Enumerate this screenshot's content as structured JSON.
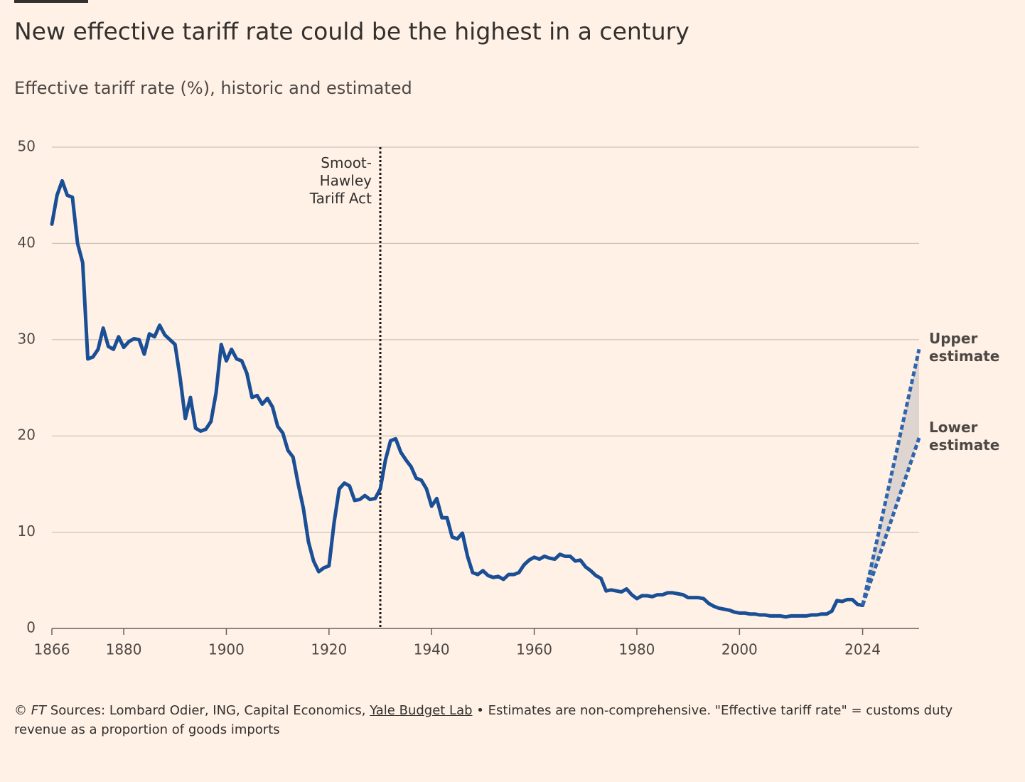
{
  "chart_data": {
    "type": "line",
    "title": "New effective tariff rate could be the highest in a century",
    "subtitle": "Effective tariff rate (%), historic and estimated",
    "xlim": [
      1866,
      2035
    ],
    "xticks": [
      1866,
      1880,
      1900,
      1920,
      1940,
      1960,
      1980,
      2000,
      2024
    ],
    "ylim": [
      0,
      50
    ],
    "yticks": [
      0,
      10,
      20,
      30,
      40,
      50
    ],
    "grid": true,
    "annotations": [
      {
        "text": "Smoot-Hawley Tariff Act",
        "x": 1930
      }
    ],
    "series": [
      {
        "color": "#1a4f96",
        "dashed": false,
        "x": [
          1866,
          1867,
          1868,
          1869,
          1870,
          1871,
          1872,
          1873,
          1874,
          1875,
          1876,
          1877,
          1878,
          1879,
          1880,
          1881,
          1882,
          1883,
          1884,
          1885,
          1886,
          1887,
          1888,
          1889,
          1890,
          1891,
          1892,
          1893,
          1894,
          1895,
          1896,
          1897,
          1898,
          1899,
          1900,
          1901,
          1902,
          1903,
          1904,
          1905,
          1906,
          1907,
          1908,
          1909,
          1910,
          1911,
          1912,
          1913,
          1914,
          1915,
          1916,
          1917,
          1918,
          1919,
          1920,
          1921,
          1922,
          1923,
          1924,
          1925,
          1926,
          1927,
          1928,
          1929,
          1930,
          1931,
          1932,
          1933,
          1934,
          1935,
          1936,
          1937,
          1938,
          1939,
          1940,
          1941,
          1942,
          1943,
          1944,
          1945,
          1946,
          1947,
          1948,
          1949,
          1950,
          1951,
          1952,
          1953,
          1954,
          1955,
          1956,
          1957,
          1958,
          1959,
          1960,
          1961,
          1962,
          1963,
          1964,
          1965,
          1966,
          1967,
          1968,
          1969,
          1970,
          1971,
          1972,
          1973,
          1974,
          1975,
          1976,
          1977,
          1978,
          1979,
          1980,
          1981,
          1982,
          1983,
          1984,
          1985,
          1986,
          1987,
          1988,
          1989,
          1990,
          1991,
          1992,
          1993,
          1994,
          1995,
          1996,
          1997,
          1998,
          1999,
          2000,
          2001,
          2002,
          2003,
          2004,
          2005,
          2006,
          2007,
          2008,
          2009,
          2010,
          2011,
          2012,
          2013,
          2014,
          2015,
          2016,
          2017,
          2018,
          2019,
          2020,
          2021,
          2022,
          2023,
          2024
        ],
        "values": [
          42,
          45,
          46.5,
          45,
          44.8,
          40,
          38,
          28,
          28.2,
          29,
          31.2,
          29.3,
          29,
          30.3,
          29.2,
          29.8,
          30.1,
          30,
          28.5,
          30.6,
          30.3,
          31.5,
          30.5,
          30,
          29.5,
          26,
          21.8,
          24,
          20.8,
          20.5,
          20.7,
          21.5,
          24.5,
          29.5,
          27.8,
          29,
          28,
          27.8,
          26.5,
          24,
          24.2,
          23.3,
          23.9,
          23,
          21,
          20.3,
          18.5,
          17.8,
          15,
          12.5,
          9,
          7,
          5.9,
          6.3,
          6.5,
          11,
          14.5,
          15.1,
          14.8,
          13.3,
          13.4,
          13.8,
          13.4,
          13.5,
          14.5,
          17.5,
          19.5,
          19.7,
          18.3,
          17.5,
          16.8,
          15.6,
          15.4,
          14.5,
          12.7,
          13.5,
          11.5,
          11.5,
          9.5,
          9.3,
          9.9,
          7.5,
          5.8,
          5.6,
          6,
          5.5,
          5.3,
          5.4,
          5.1,
          5.6,
          5.6,
          5.8,
          6.6,
          7.1,
          7.4,
          7.2,
          7.5,
          7.3,
          7.2,
          7.7,
          7.5,
          7.5,
          7,
          7.1,
          6.4,
          6,
          5.5,
          5.2,
          3.9,
          4,
          3.9,
          3.8,
          4.1,
          3.5,
          3.1,
          3.4,
          3.4,
          3.3,
          3.5,
          3.5,
          3.7,
          3.7,
          3.6,
          3.5,
          3.2,
          3.2,
          3.2,
          3.1,
          2.6,
          2.3,
          2.1,
          2,
          1.9,
          1.7,
          1.6,
          1.6,
          1.5,
          1.5,
          1.4,
          1.4,
          1.3,
          1.3,
          1.3,
          1.2,
          1.3,
          1.3,
          1.3,
          1.3,
          1.4,
          1.4,
          1.5,
          1.5,
          1.8,
          2.9,
          2.8,
          3,
          3,
          2.5,
          2.4
        ]
      },
      {
        "name": "Upper estimate",
        "color": "#2f65ad",
        "dashed": true,
        "x": [
          2024,
          2035
        ],
        "values": [
          2.4,
          29
        ]
      },
      {
        "name": "Lower estimate",
        "color": "#2f65ad",
        "dashed": true,
        "x": [
          2024,
          2035
        ],
        "values": [
          2.4,
          19.8
        ]
      }
    ],
    "band_color": "#ded5d1",
    "footer": {
      "copyright": "©",
      "brand": "FT",
      "sources": "Sources: Lombard Odier, ING, Capital Economics,",
      "link": "Yale Budget Lab",
      "note": "• Estimates are non-comprehensive. \"Effective tariff rate\" = customs duty revenue as a proportion of goods imports"
    }
  }
}
